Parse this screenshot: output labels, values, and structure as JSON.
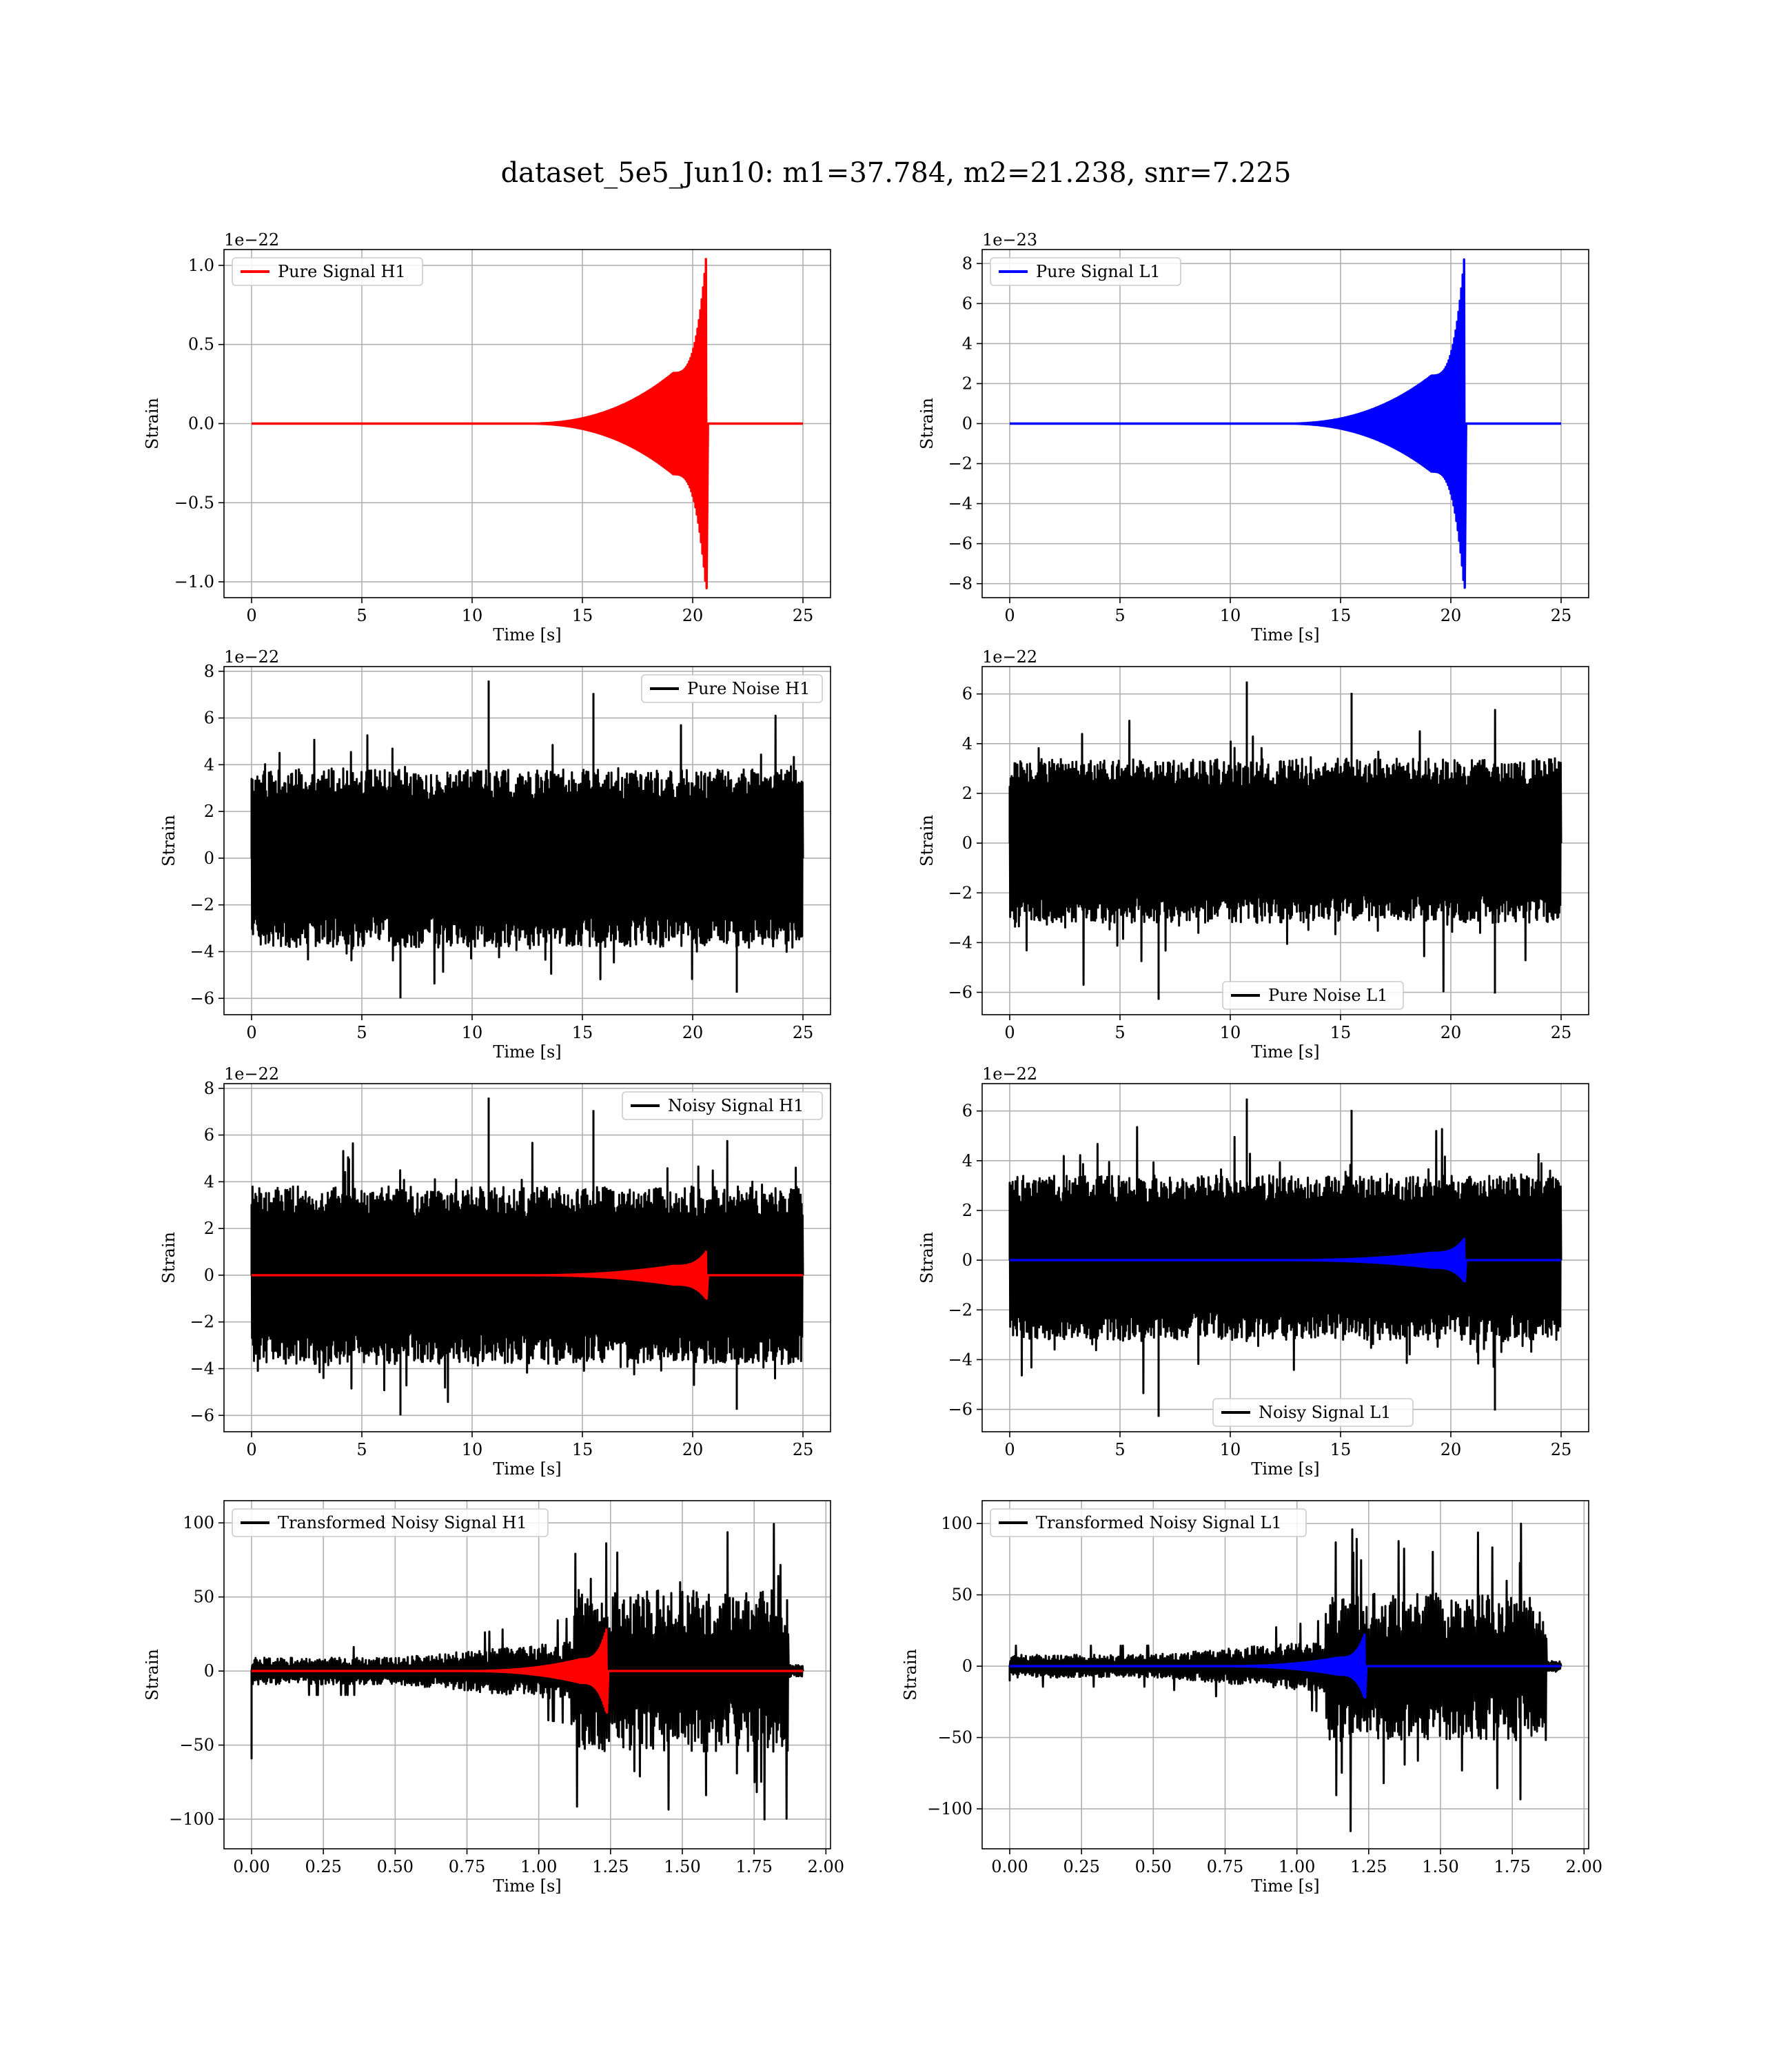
{
  "figure": {
    "title": "dataset_5e5_Jun10: m1=37.784, m2=21.238, snr=7.225"
  },
  "colors": {
    "h1_signal": "#ff0000",
    "l1_signal": "#0000ff",
    "noise": "#000000",
    "grid": "#b0b0b0"
  },
  "chart_data": [
    {
      "id": "pure-signal-h1",
      "type": "line",
      "xlabel": "Time [s]",
      "ylabel": "Strain",
      "offset": "1e−22",
      "xlim": [
        -1.25,
        26.25
      ],
      "ylim": [
        -1.1,
        1.1
      ],
      "xticks": [
        0,
        5,
        10,
        15,
        20,
        25
      ],
      "xtick_labels": [
        "0",
        "5",
        "10",
        "15",
        "20",
        "25"
      ],
      "yticks": [
        -1.0,
        -0.5,
        0.0,
        0.5,
        1.0
      ],
      "ytick_labels": [
        "−1.0",
        "−0.5",
        "0.0",
        "0.5",
        "1.0"
      ],
      "grid": true,
      "legend_position": "upper-left",
      "series": [
        {
          "name": "Pure Signal H1",
          "color": "#ff0000",
          "kind": "chirp",
          "x_start": 0,
          "x_end": 25,
          "merger_x": 20.6,
          "peak_amplitude": 1.04,
          "inspiral_amplitude": 0.32
        }
      ]
    },
    {
      "id": "pure-signal-l1",
      "type": "line",
      "xlabel": "Time [s]",
      "ylabel": "Strain",
      "offset": "1e−23",
      "xlim": [
        -1.25,
        26.25
      ],
      "ylim": [
        -8.7,
        8.7
      ],
      "xticks": [
        0,
        5,
        10,
        15,
        20,
        25
      ],
      "xtick_labels": [
        "0",
        "5",
        "10",
        "15",
        "20",
        "25"
      ],
      "yticks": [
        -8,
        -6,
        -4,
        -2,
        0,
        2,
        4,
        6,
        8
      ],
      "ytick_labels": [
        "−8",
        "−6",
        "−4",
        "−2",
        "0",
        "2",
        "4",
        "6",
        "8"
      ],
      "grid": true,
      "legend_position": "upper-left",
      "series": [
        {
          "name": "Pure Signal L1",
          "color": "#0000ff",
          "kind": "chirp",
          "x_start": 0,
          "x_end": 25,
          "merger_x": 20.6,
          "peak_amplitude": 8.2,
          "inspiral_amplitude": 2.4
        }
      ]
    },
    {
      "id": "pure-noise-h1",
      "type": "line",
      "xlabel": "Time [s]",
      "ylabel": "Strain",
      "offset": "1e−22",
      "xlim": [
        -1.25,
        26.25
      ],
      "ylim": [
        -6.7,
        8.2
      ],
      "xticks": [
        0,
        5,
        10,
        15,
        20,
        25
      ],
      "xtick_labels": [
        "0",
        "5",
        "10",
        "15",
        "20",
        "25"
      ],
      "yticks": [
        -6,
        -4,
        -2,
        0,
        2,
        4,
        6,
        8
      ],
      "ytick_labels": [
        "−6",
        "−4",
        "−2",
        "0",
        "2",
        "4",
        "6",
        "8"
      ],
      "grid": true,
      "legend_position": "upper-right",
      "series": [
        {
          "name": "Pure Noise H1",
          "color": "#000000",
          "kind": "noise",
          "x_start": 0,
          "x_end": 25,
          "band_low": -3.8,
          "band_high": 3.8,
          "spike_min": -6.0,
          "spike_max": 7.6
        }
      ]
    },
    {
      "id": "pure-noise-l1",
      "type": "line",
      "xlabel": "Time [s]",
      "ylabel": "Strain",
      "offset": "1e−22",
      "xlim": [
        -1.25,
        26.25
      ],
      "ylim": [
        -6.9,
        7.1
      ],
      "xticks": [
        0,
        5,
        10,
        15,
        20,
        25
      ],
      "xtick_labels": [
        "0",
        "5",
        "10",
        "15",
        "20",
        "25"
      ],
      "yticks": [
        -6,
        -4,
        -2,
        0,
        2,
        4,
        6
      ],
      "ytick_labels": [
        "−6",
        "−4",
        "−2",
        "0",
        "2",
        "4",
        "6"
      ],
      "grid": true,
      "legend_position": "lower-center",
      "series": [
        {
          "name": "Pure Noise L1",
          "color": "#000000",
          "kind": "noise",
          "x_start": 0,
          "x_end": 25,
          "band_low": -3.2,
          "band_high": 3.4,
          "spike_min": -6.3,
          "spike_max": 6.5
        }
      ]
    },
    {
      "id": "noisy-signal-h1",
      "type": "line",
      "xlabel": "Time [s]",
      "ylabel": "Strain",
      "offset": "1e−22",
      "xlim": [
        -1.25,
        26.25
      ],
      "ylim": [
        -6.7,
        8.2
      ],
      "xticks": [
        0,
        5,
        10,
        15,
        20,
        25
      ],
      "xtick_labels": [
        "0",
        "5",
        "10",
        "15",
        "20",
        "25"
      ],
      "yticks": [
        -6,
        -4,
        -2,
        0,
        2,
        4,
        6,
        8
      ],
      "ytick_labels": [
        "−6",
        "−4",
        "−2",
        "0",
        "2",
        "4",
        "6",
        "8"
      ],
      "grid": true,
      "legend_position": "upper-right",
      "series": [
        {
          "name": "Noisy Signal H1",
          "color": "#000000",
          "kind": "noise",
          "x_start": 0,
          "x_end": 25,
          "band_low": -3.8,
          "band_high": 3.8,
          "spike_min": -6.0,
          "spike_max": 7.6
        },
        {
          "name": "",
          "color": "#ff0000",
          "kind": "chirp",
          "x_start": 0,
          "x_end": 25,
          "merger_x": 20.6,
          "peak_amplitude": 1.0,
          "inspiral_amplitude": 0.4
        }
      ]
    },
    {
      "id": "noisy-signal-l1",
      "type": "line",
      "xlabel": "Time [s]",
      "ylabel": "Strain",
      "offset": "1e−22",
      "xlim": [
        -1.25,
        26.25
      ],
      "ylim": [
        -6.9,
        7.1
      ],
      "xticks": [
        0,
        5,
        10,
        15,
        20,
        25
      ],
      "xtick_labels": [
        "0",
        "5",
        "10",
        "15",
        "20",
        "25"
      ],
      "yticks": [
        -6,
        -4,
        -2,
        0,
        2,
        4,
        6
      ],
      "ytick_labels": [
        "−6",
        "−4",
        "−2",
        "0",
        "2",
        "4",
        "6"
      ],
      "grid": true,
      "legend_position": "lower-center",
      "series": [
        {
          "name": "Noisy Signal L1",
          "color": "#000000",
          "kind": "noise",
          "x_start": 0,
          "x_end": 25,
          "band_low": -3.2,
          "band_high": 3.4,
          "spike_min": -6.3,
          "spike_max": 6.5
        },
        {
          "name": "",
          "color": "#0000ff",
          "kind": "chirp",
          "x_start": 0,
          "x_end": 25,
          "merger_x": 20.6,
          "peak_amplitude": 0.85,
          "inspiral_amplitude": 0.3
        }
      ]
    },
    {
      "id": "transformed-noisy-signal-h1",
      "type": "line",
      "xlabel": "Time [s]",
      "ylabel": "Strain",
      "offset": "",
      "xlim": [
        -0.096,
        2.016
      ],
      "ylim": [
        -120,
        115
      ],
      "xticks": [
        0,
        0.25,
        0.5,
        0.75,
        1.0,
        1.25,
        1.5,
        1.75,
        2.0
      ],
      "xtick_labels": [
        "0.00",
        "0.25",
        "0.50",
        "0.75",
        "1.00",
        "1.25",
        "1.50",
        "1.75",
        "2.00"
      ],
      "yticks": [
        -100,
        -50,
        0,
        50,
        100
      ],
      "ytick_labels": [
        "−100",
        "−50",
        "0",
        "50",
        "100"
      ],
      "grid": true,
      "legend_position": "upper-left",
      "series": [
        {
          "name": "Transformed Noisy Signal H1",
          "color": "#000000",
          "kind": "transformed",
          "x_start": 0,
          "x_end": 1.92,
          "jump_x": 1.12,
          "cutoff_x": 1.87,
          "early_amplitude": 9,
          "mid_amplitude": 20,
          "late_amplitude": 55,
          "spike_min": -107,
          "spike_max": 102,
          "initial_dip": -59
        },
        {
          "name": "",
          "color": "#ff0000",
          "kind": "chirp",
          "x_start": 0,
          "x_end": 1.92,
          "merger_x": 1.235,
          "peak_amplitude": 28,
          "inspiral_amplitude": 8
        }
      ]
    },
    {
      "id": "transformed-noisy-signal-l1",
      "type": "line",
      "xlabel": "Time [s]",
      "ylabel": "Strain",
      "offset": "",
      "xlim": [
        -0.096,
        2.016
      ],
      "ylim": [
        -128,
        116
      ],
      "xticks": [
        0,
        0.25,
        0.5,
        0.75,
        1.0,
        1.25,
        1.5,
        1.75,
        2.0
      ],
      "xtick_labels": [
        "0.00",
        "0.25",
        "0.50",
        "0.75",
        "1.00",
        "1.25",
        "1.50",
        "1.75",
        "2.00"
      ],
      "yticks": [
        -100,
        -50,
        0,
        50,
        100
      ],
      "ytick_labels": [
        "−100",
        "−50",
        "0",
        "50",
        "100"
      ],
      "grid": true,
      "legend_position": "upper-left",
      "series": [
        {
          "name": "Transformed Noisy Signal L1",
          "color": "#000000",
          "kind": "transformed",
          "x_start": 0,
          "x_end": 1.92,
          "jump_x": 1.1,
          "cutoff_x": 1.87,
          "early_amplitude": 8,
          "mid_amplitude": 18,
          "late_amplitude": 52,
          "spike_min": -118,
          "spike_max": 104,
          "initial_dip": -10
        },
        {
          "name": "",
          "color": "#0000ff",
          "kind": "chirp",
          "x_start": 0,
          "x_end": 1.92,
          "merger_x": 1.235,
          "peak_amplitude": 22,
          "inspiral_amplitude": 6
        }
      ]
    }
  ]
}
